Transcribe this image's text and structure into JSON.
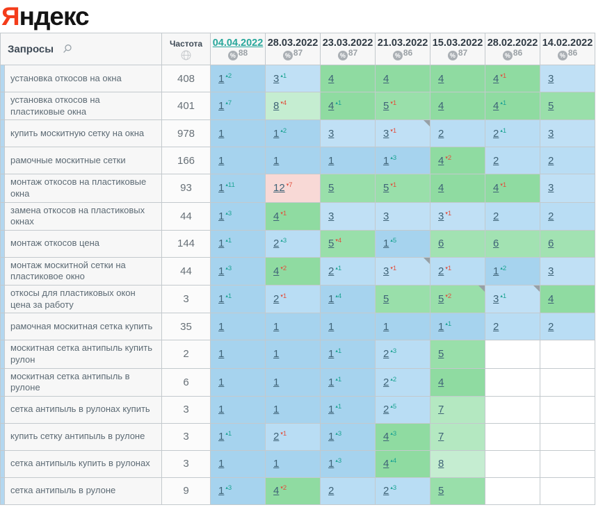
{
  "logo": {
    "brand_first_letter": "Я",
    "brand_rest": "ндекс",
    "brand_color": "#f43c1a"
  },
  "icons": {
    "percent_badge": "%",
    "search": "search-icon",
    "frequency_globe": "globe-icon"
  },
  "colors": {
    "accent_link": "#28a79b",
    "change_up": "#1ba393",
    "change_down": "#e0503e",
    "position_bg": {
      "1": "#a6d3ee",
      "2": "#b9ddf4",
      "3": "#c0e0f5",
      "4": "#8fdba1",
      "5": "#99dfaa",
      "6": "#a2e2b2",
      "7": "#b4e8c1",
      "8": "#c5edd1",
      "9": "#c5edd1",
      "10": "#c5edd1",
      "out": "#f8d9d6",
      "empty": "#ffffff"
    }
  },
  "table": {
    "queries_header": "Запросы",
    "frequency_header": "Частота",
    "columns": [
      {
        "date": "04.04.2022",
        "coverage": "88",
        "active": true
      },
      {
        "date": "28.03.2022",
        "coverage": "87",
        "active": false
      },
      {
        "date": "23.03.2022",
        "coverage": "87",
        "active": false
      },
      {
        "date": "21.03.2022",
        "coverage": "86",
        "active": false
      },
      {
        "date": "15.03.2022",
        "coverage": "87",
        "active": false
      },
      {
        "date": "28.02.2022",
        "coverage": "86",
        "active": false
      },
      {
        "date": "14.02.2022",
        "coverage": "86",
        "active": false
      }
    ],
    "rows": [
      {
        "query": "установка откосов на окна",
        "frequency": "408",
        "cells": [
          {
            "pos": "1",
            "change": 2
          },
          {
            "pos": "3",
            "change": 1
          },
          {
            "pos": "4"
          },
          {
            "pos": "4"
          },
          {
            "pos": "4"
          },
          {
            "pos": "4",
            "change": -1
          },
          {
            "pos": "3"
          }
        ]
      },
      {
        "query": "установка откосов на пластиковые окна",
        "frequency": "401",
        "cells": [
          {
            "pos": "1",
            "change": 7
          },
          {
            "pos": "8",
            "change": -4
          },
          {
            "pos": "4",
            "change": 1
          },
          {
            "pos": "5",
            "change": -1
          },
          {
            "pos": "4"
          },
          {
            "pos": "4",
            "change": 1
          },
          {
            "pos": "5"
          }
        ]
      },
      {
        "query": "купить москитную сетку на окна",
        "frequency": "978",
        "cells": [
          {
            "pos": "1"
          },
          {
            "pos": "1",
            "change": 2
          },
          {
            "pos": "3"
          },
          {
            "pos": "3",
            "change": -1,
            "corner": true
          },
          {
            "pos": "2"
          },
          {
            "pos": "2",
            "change": 1
          },
          {
            "pos": "3"
          }
        ]
      },
      {
        "query": "рамочные москитные сетки",
        "frequency": "166",
        "cells": [
          {
            "pos": "1"
          },
          {
            "pos": "1"
          },
          {
            "pos": "1"
          },
          {
            "pos": "1",
            "change": 3
          },
          {
            "pos": "4",
            "change": -2
          },
          {
            "pos": "2"
          },
          {
            "pos": "2"
          }
        ]
      },
      {
        "query": "монтаж откосов на пластиковые окна",
        "frequency": "93",
        "cells": [
          {
            "pos": "1",
            "change": 11
          },
          {
            "pos": "12",
            "change": -7
          },
          {
            "pos": "5"
          },
          {
            "pos": "5",
            "change": -1
          },
          {
            "pos": "4"
          },
          {
            "pos": "4",
            "change": -1
          },
          {
            "pos": "3"
          }
        ]
      },
      {
        "query": "замена откосов на пластиковых окнах",
        "frequency": "44",
        "cells": [
          {
            "pos": "1",
            "change": 3
          },
          {
            "pos": "4",
            "change": -1
          },
          {
            "pos": "3"
          },
          {
            "pos": "3"
          },
          {
            "pos": "3",
            "change": -1
          },
          {
            "pos": "2"
          },
          {
            "pos": "2"
          }
        ]
      },
      {
        "query": "монтаж откосов цена",
        "frequency": "144",
        "cells": [
          {
            "pos": "1",
            "change": 1
          },
          {
            "pos": "2",
            "change": 3
          },
          {
            "pos": "5",
            "change": -4
          },
          {
            "pos": "1",
            "change": 5
          },
          {
            "pos": "6"
          },
          {
            "pos": "6"
          },
          {
            "pos": "6"
          }
        ]
      },
      {
        "query": "монтаж москитной сетки на пластиковое окно",
        "frequency": "44",
        "cells": [
          {
            "pos": "1",
            "change": 3
          },
          {
            "pos": "4",
            "change": -2
          },
          {
            "pos": "2",
            "change": 1
          },
          {
            "pos": "3",
            "change": -1,
            "corner": true
          },
          {
            "pos": "2",
            "change": -1
          },
          {
            "pos": "1",
            "change": 2
          },
          {
            "pos": "3"
          }
        ]
      },
      {
        "query": "откосы для пластиковых окон цена за работу",
        "frequency": "3",
        "cells": [
          {
            "pos": "1",
            "change": 1
          },
          {
            "pos": "2",
            "change": -1
          },
          {
            "pos": "1",
            "change": 4
          },
          {
            "pos": "5"
          },
          {
            "pos": "5",
            "change": -2,
            "corner": true
          },
          {
            "pos": "3",
            "change": 1,
            "corner": true
          },
          {
            "pos": "4"
          }
        ]
      },
      {
        "query": "рамочная москитная сетка купить",
        "frequency": "35",
        "cells": [
          {
            "pos": "1"
          },
          {
            "pos": "1"
          },
          {
            "pos": "1"
          },
          {
            "pos": "1"
          },
          {
            "pos": "1",
            "change": 1
          },
          {
            "pos": "2"
          },
          {
            "pos": "2"
          }
        ]
      },
      {
        "query": "москитная сетка антипыль купить рулон",
        "frequency": "2",
        "cells": [
          {
            "pos": "1"
          },
          {
            "pos": "1"
          },
          {
            "pos": "1",
            "change": 1
          },
          {
            "pos": "2",
            "change": 3
          },
          {
            "pos": "5"
          },
          {
            "pos": ""
          },
          {
            "pos": ""
          }
        ]
      },
      {
        "query": "москитная сетка антипыль в рулоне",
        "frequency": "6",
        "cells": [
          {
            "pos": "1"
          },
          {
            "pos": "1"
          },
          {
            "pos": "1",
            "change": 1
          },
          {
            "pos": "2",
            "change": 2
          },
          {
            "pos": "4"
          },
          {
            "pos": ""
          },
          {
            "pos": ""
          }
        ]
      },
      {
        "query": "сетка антипыль в рулонах купить",
        "frequency": "3",
        "cells": [
          {
            "pos": "1"
          },
          {
            "pos": "1"
          },
          {
            "pos": "1",
            "change": 1
          },
          {
            "pos": "2",
            "change": 5
          },
          {
            "pos": "7"
          },
          {
            "pos": ""
          },
          {
            "pos": ""
          }
        ]
      },
      {
        "query": "купить сетку антипыль в рулоне",
        "frequency": "3",
        "cells": [
          {
            "pos": "1",
            "change": 1
          },
          {
            "pos": "2",
            "change": -1
          },
          {
            "pos": "1",
            "change": 3
          },
          {
            "pos": "4",
            "change": 3
          },
          {
            "pos": "7"
          },
          {
            "pos": ""
          },
          {
            "pos": ""
          }
        ]
      },
      {
        "query": "сетка антипыль купить в рулонах",
        "frequency": "3",
        "cells": [
          {
            "pos": "1"
          },
          {
            "pos": "1"
          },
          {
            "pos": "1",
            "change": 3
          },
          {
            "pos": "4",
            "change": 4
          },
          {
            "pos": "8"
          },
          {
            "pos": ""
          },
          {
            "pos": ""
          }
        ]
      },
      {
        "query": "сетка антипыль в рулоне",
        "frequency": "9",
        "cells": [
          {
            "pos": "1",
            "change": 3
          },
          {
            "pos": "4",
            "change": -2
          },
          {
            "pos": "2"
          },
          {
            "pos": "2",
            "change": 3
          },
          {
            "pos": "5"
          },
          {
            "pos": ""
          },
          {
            "pos": ""
          }
        ]
      }
    ]
  }
}
